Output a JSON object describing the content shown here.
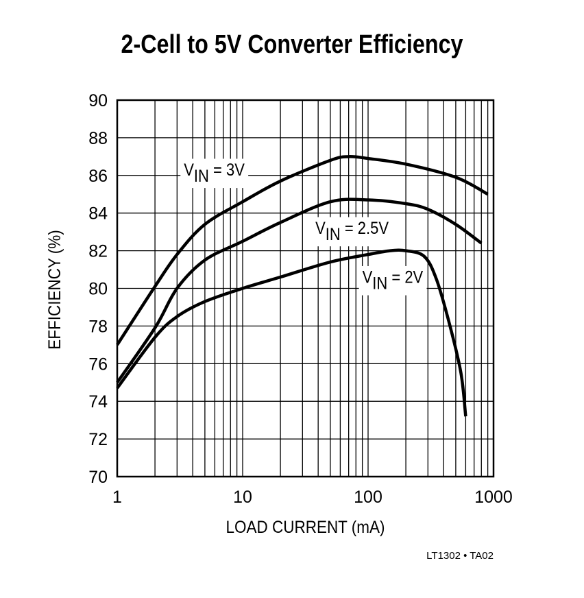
{
  "chart_data": {
    "type": "line",
    "title": "2-Cell to 5V Converter Efficiency",
    "xlabel": "LOAD CURRENT (mA)",
    "ylabel": "EFFICIENCY (%)",
    "xscale": "log",
    "xlim": [
      1,
      1000
    ],
    "ylim": [
      70,
      90
    ],
    "xticks": [
      1,
      10,
      100,
      1000
    ],
    "xtick_labels": [
      "1",
      "10",
      "100",
      "1000"
    ],
    "yticks": [
      70,
      72,
      74,
      76,
      78,
      80,
      82,
      84,
      86,
      88,
      90
    ],
    "grid": true,
    "line_color": "#000000",
    "series": [
      {
        "name": "VIN = 3V",
        "label_main": "V",
        "label_sub": "IN",
        "label_rest": " = 3V",
        "x": [
          1,
          2,
          3,
          5,
          10,
          20,
          50,
          70,
          100,
          200,
          500,
          900
        ],
        "y": [
          77.0,
          80.1,
          81.8,
          83.4,
          84.6,
          85.7,
          86.8,
          87.0,
          86.9,
          86.6,
          85.9,
          85.0
        ]
      },
      {
        "name": "VIN = 2.5V",
        "label_main": "V",
        "label_sub": "IN",
        "label_rest": " = 2.5V",
        "x": [
          1,
          2,
          3,
          5,
          10,
          20,
          50,
          100,
          200,
          300,
          500,
          800
        ],
        "y": [
          75.0,
          77.9,
          80.0,
          81.5,
          82.5,
          83.5,
          84.6,
          84.7,
          84.5,
          84.2,
          83.4,
          82.4
        ]
      },
      {
        "name": "VIN = 2V",
        "label_main": "V",
        "label_sub": "IN",
        "label_rest": " = 2V",
        "x": [
          1,
          2,
          3,
          5,
          10,
          20,
          50,
          100,
          150,
          200,
          280,
          350,
          450,
          550,
          600
        ],
        "y": [
          74.7,
          77.4,
          78.5,
          79.3,
          80.0,
          80.6,
          81.4,
          81.8,
          82.0,
          82.0,
          81.7,
          80.5,
          78.0,
          75.5,
          73.2
        ]
      }
    ],
    "annotation": "LT1302 • TA02"
  }
}
